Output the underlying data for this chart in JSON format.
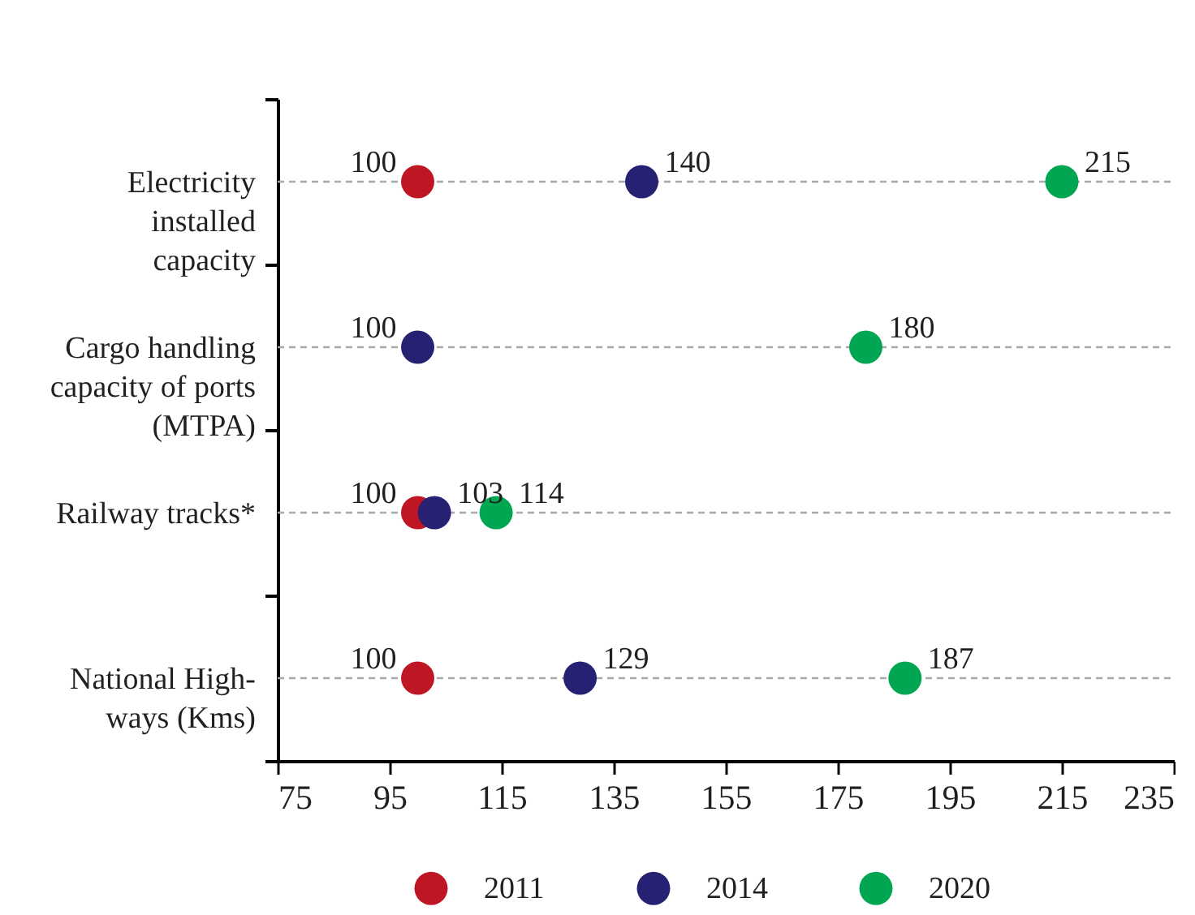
{
  "chart_data": {
    "type": "scatter",
    "orientation": "horizontal",
    "categories": [
      "Electricity\ninstalled\ncapacity",
      "Cargo handling\ncapacity of ports\n(MTPA)",
      "Railway tracks*",
      "National High-\nways (Kms)"
    ],
    "series": [
      {
        "name": "2011",
        "color": "#be1622",
        "values": [
          100,
          null,
          100,
          100
        ]
      },
      {
        "name": "2014",
        "color": "#262172",
        "values": [
          140,
          100,
          103,
          129
        ]
      },
      {
        "name": "2020",
        "color": "#00a651",
        "values": [
          215,
          180,
          114,
          187
        ]
      }
    ],
    "xlim": [
      75,
      235
    ],
    "xticks": [
      75,
      95,
      115,
      135,
      155,
      175,
      195,
      215,
      235
    ],
    "grid": "y",
    "legend": "bottom",
    "marker": "circle",
    "data_labels": true
  }
}
